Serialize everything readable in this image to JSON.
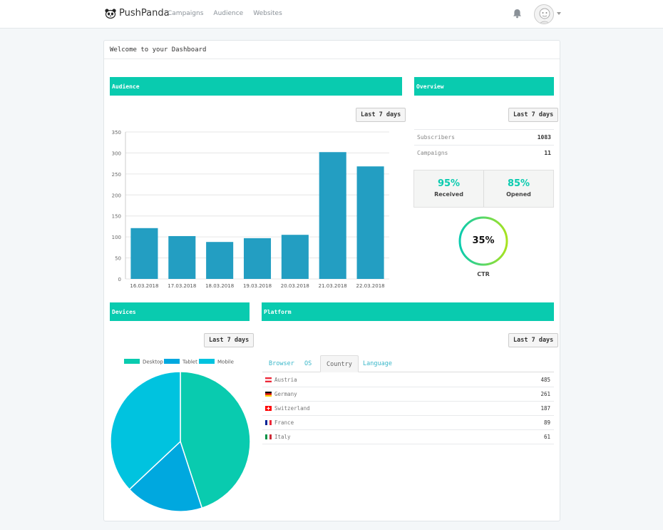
{
  "header": {
    "brand": "PushPanda",
    "nav": [
      "Campaigns",
      "Audience",
      "Websites"
    ]
  },
  "dashboard": {
    "welcome": "Welcome to your Dashboard"
  },
  "audience": {
    "title": "Audience",
    "range_button": "Last 7 days"
  },
  "overview": {
    "title": "Overview",
    "range_button": "Last 7 days",
    "rows": [
      {
        "label": "Subscribers",
        "value": "1083"
      },
      {
        "label": "Campaigns",
        "value": "11"
      }
    ],
    "received": {
      "value": "95%",
      "label": "Received"
    },
    "opened": {
      "value": "85%",
      "label": "Opened"
    },
    "ctr": {
      "value": "35%",
      "label": "CTR",
      "fraction": 1.0
    }
  },
  "devices": {
    "title": "Devices",
    "range_button": "Last 7 days"
  },
  "platform": {
    "title": "Platform",
    "range_button": "Last 7 days",
    "tabs": [
      "Browser",
      "OS",
      "Country",
      "Language"
    ],
    "active_tab": "Country",
    "rows": [
      {
        "name": "Austria",
        "count": "485",
        "flag": "austria"
      },
      {
        "name": "Germany",
        "count": "261",
        "flag": "germany"
      },
      {
        "name": "Switzerland",
        "count": "187",
        "flag": "switzerland"
      },
      {
        "name": "France",
        "count": "89",
        "flag": "france"
      },
      {
        "name": "Italy",
        "count": "61",
        "flag": "italy"
      }
    ]
  },
  "colors": {
    "accent": "#09cbaf",
    "bar": "#239ec2",
    "desktop": "#09cbaf",
    "tablet": "#00a8df",
    "mobile": "#00c3df"
  },
  "chart_data": [
    {
      "type": "bar",
      "categories": [
        "16.03.2018",
        "17.03.2018",
        "18.03.2018",
        "19.03.2018",
        "20.03.2018",
        "21.03.2018",
        "22.03.2018"
      ],
      "values": [
        121,
        102,
        88,
        97,
        105,
        302,
        268
      ],
      "ylim": [
        0,
        350
      ],
      "yticks": [
        0,
        50,
        100,
        150,
        200,
        250,
        300,
        350
      ],
      "grid": true
    },
    {
      "type": "pie",
      "labels": [
        "Desktop",
        "Tablet",
        "Mobile"
      ],
      "values": [
        45,
        18,
        37
      ],
      "legend": "top"
    }
  ]
}
